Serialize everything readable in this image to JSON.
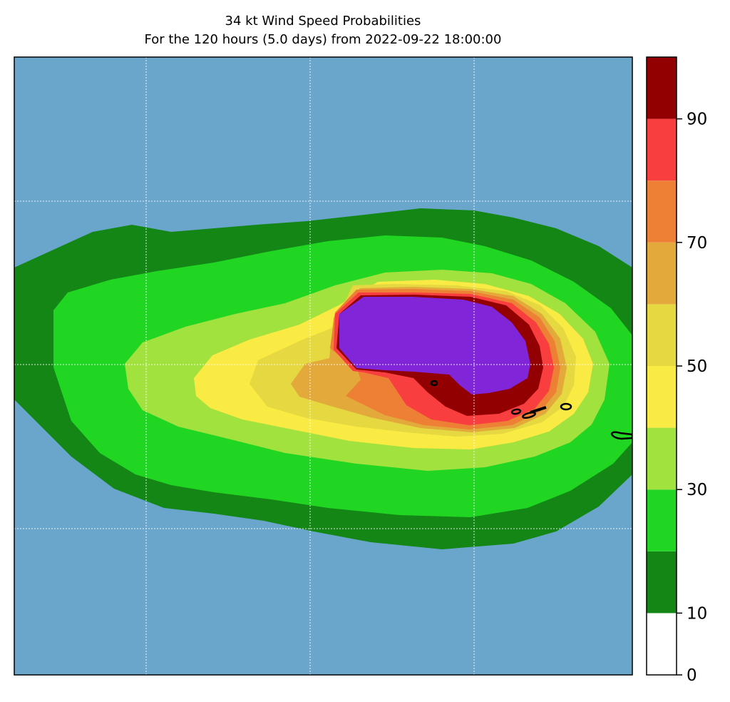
{
  "title": "34 kt Wind Speed Probabilities",
  "subtitle": "For the 120 hours (5.0 days) from 2022-09-22 18:00:00",
  "colors": {
    "ocean": "#6aa6cc",
    "levels": [
      "#ffffff",
      "#138615",
      "#21d523",
      "#a1e23e",
      "#faea44",
      "#e5d840",
      "#e3a93b",
      "#ed8034",
      "#f93e3f",
      "#930002",
      "#8025d7"
    ],
    "land": "#000000",
    "grid": "#ffffff"
  },
  "colorbar": {
    "levels": [
      0,
      10,
      20,
      30,
      40,
      50,
      60,
      70,
      80,
      90,
      100
    ],
    "tick_labels": [
      "0",
      "10",
      "30",
      "50",
      "70",
      "90"
    ],
    "tick_values": [
      0,
      10,
      30,
      50,
      70,
      90
    ]
  }
}
